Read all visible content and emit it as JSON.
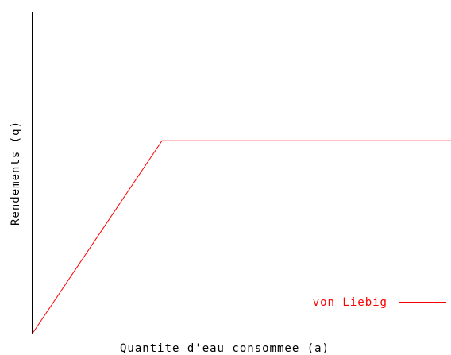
{
  "chart_data": {
    "type": "line",
    "xlabel": "Quantite d'eau consommee (a)",
    "ylabel": "Rendements (q)",
    "xlim": [
      0,
      10
    ],
    "ylim": [
      0,
      10
    ],
    "grid": false,
    "legend_position": "bottom-right",
    "series": [
      {
        "name": "von Liebig",
        "color": "#ff0000",
        "x": [
          0,
          3.1,
          10
        ],
        "y": [
          0,
          6.0,
          6.0
        ]
      }
    ]
  }
}
